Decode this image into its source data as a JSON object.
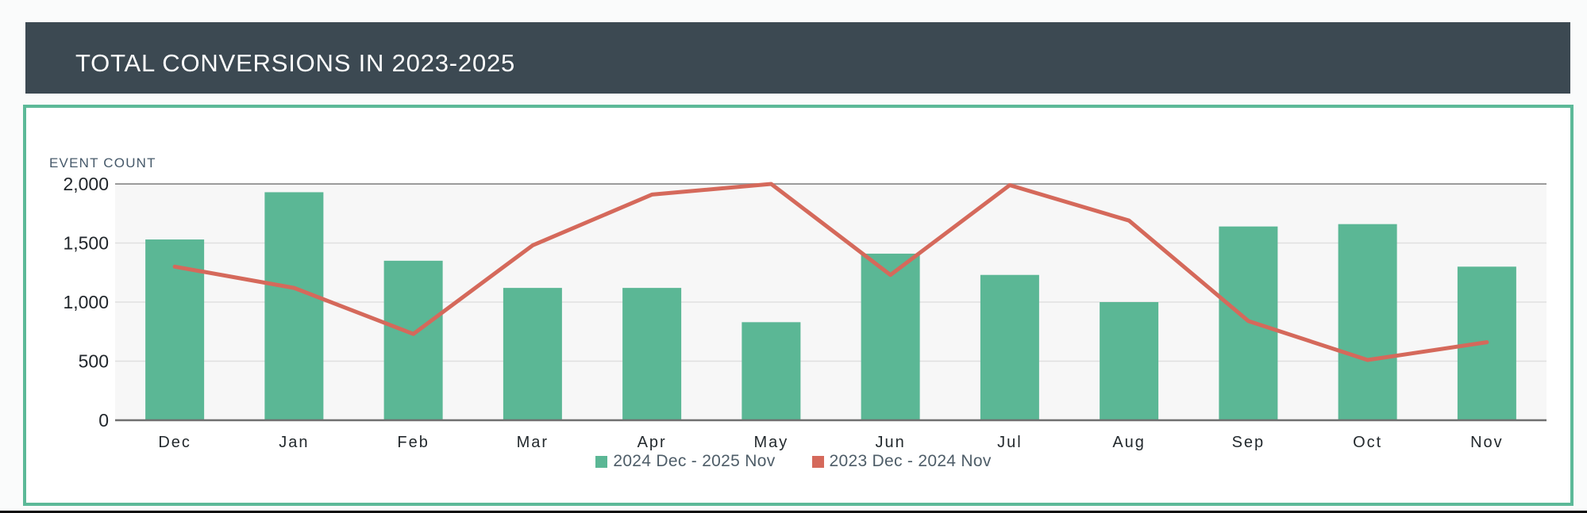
{
  "header": {
    "title": "TOTAL CONVERSIONS IN 2023-2025"
  },
  "chart": {
    "axis_label": "EVENT COUNT",
    "legend": [
      {
        "label": "2024 Dec - 2025 Nov",
        "color": "#5bb795"
      },
      {
        "label": "2023 Dec - 2024 Nov",
        "color": "#d5695b"
      }
    ]
  },
  "chart_data": {
    "type": "bar",
    "title": "TOTAL CONVERSIONS IN 2023-2025",
    "ylabel": "EVENT COUNT",
    "categories": [
      "Dec",
      "Jan",
      "Feb",
      "Mar",
      "Apr",
      "May",
      "Jun",
      "Jul",
      "Aug",
      "Sep",
      "Oct",
      "Nov"
    ],
    "series": [
      {
        "name": "2024 Dec - 2025 Nov",
        "type": "bar",
        "color": "#5bb795",
        "values": [
          1530,
          1930,
          1350,
          1120,
          1120,
          830,
          1410,
          1230,
          1000,
          1640,
          1660,
          1300
        ]
      },
      {
        "name": "2023 Dec - 2024 Nov",
        "type": "line",
        "color": "#d5695b",
        "values": [
          1300,
          1120,
          730,
          1480,
          1910,
          2000,
          1230,
          1990,
          1690,
          840,
          510,
          660
        ]
      }
    ],
    "ylim": [
      0,
      2000
    ],
    "yticks": [
      0,
      500,
      1000,
      1500,
      2000
    ],
    "grid": true,
    "legend_position": "bottom"
  },
  "colors": {
    "header_bg": "#3c4952",
    "panel_border": "#5cb998",
    "plot_bg": "#f7f7f7",
    "grid_light": "#e0e0e0",
    "grid_top": "#9b9b9b",
    "axis_line": "#6f6f6f",
    "tick_text": "#21262b",
    "month_text": "#23292d"
  }
}
